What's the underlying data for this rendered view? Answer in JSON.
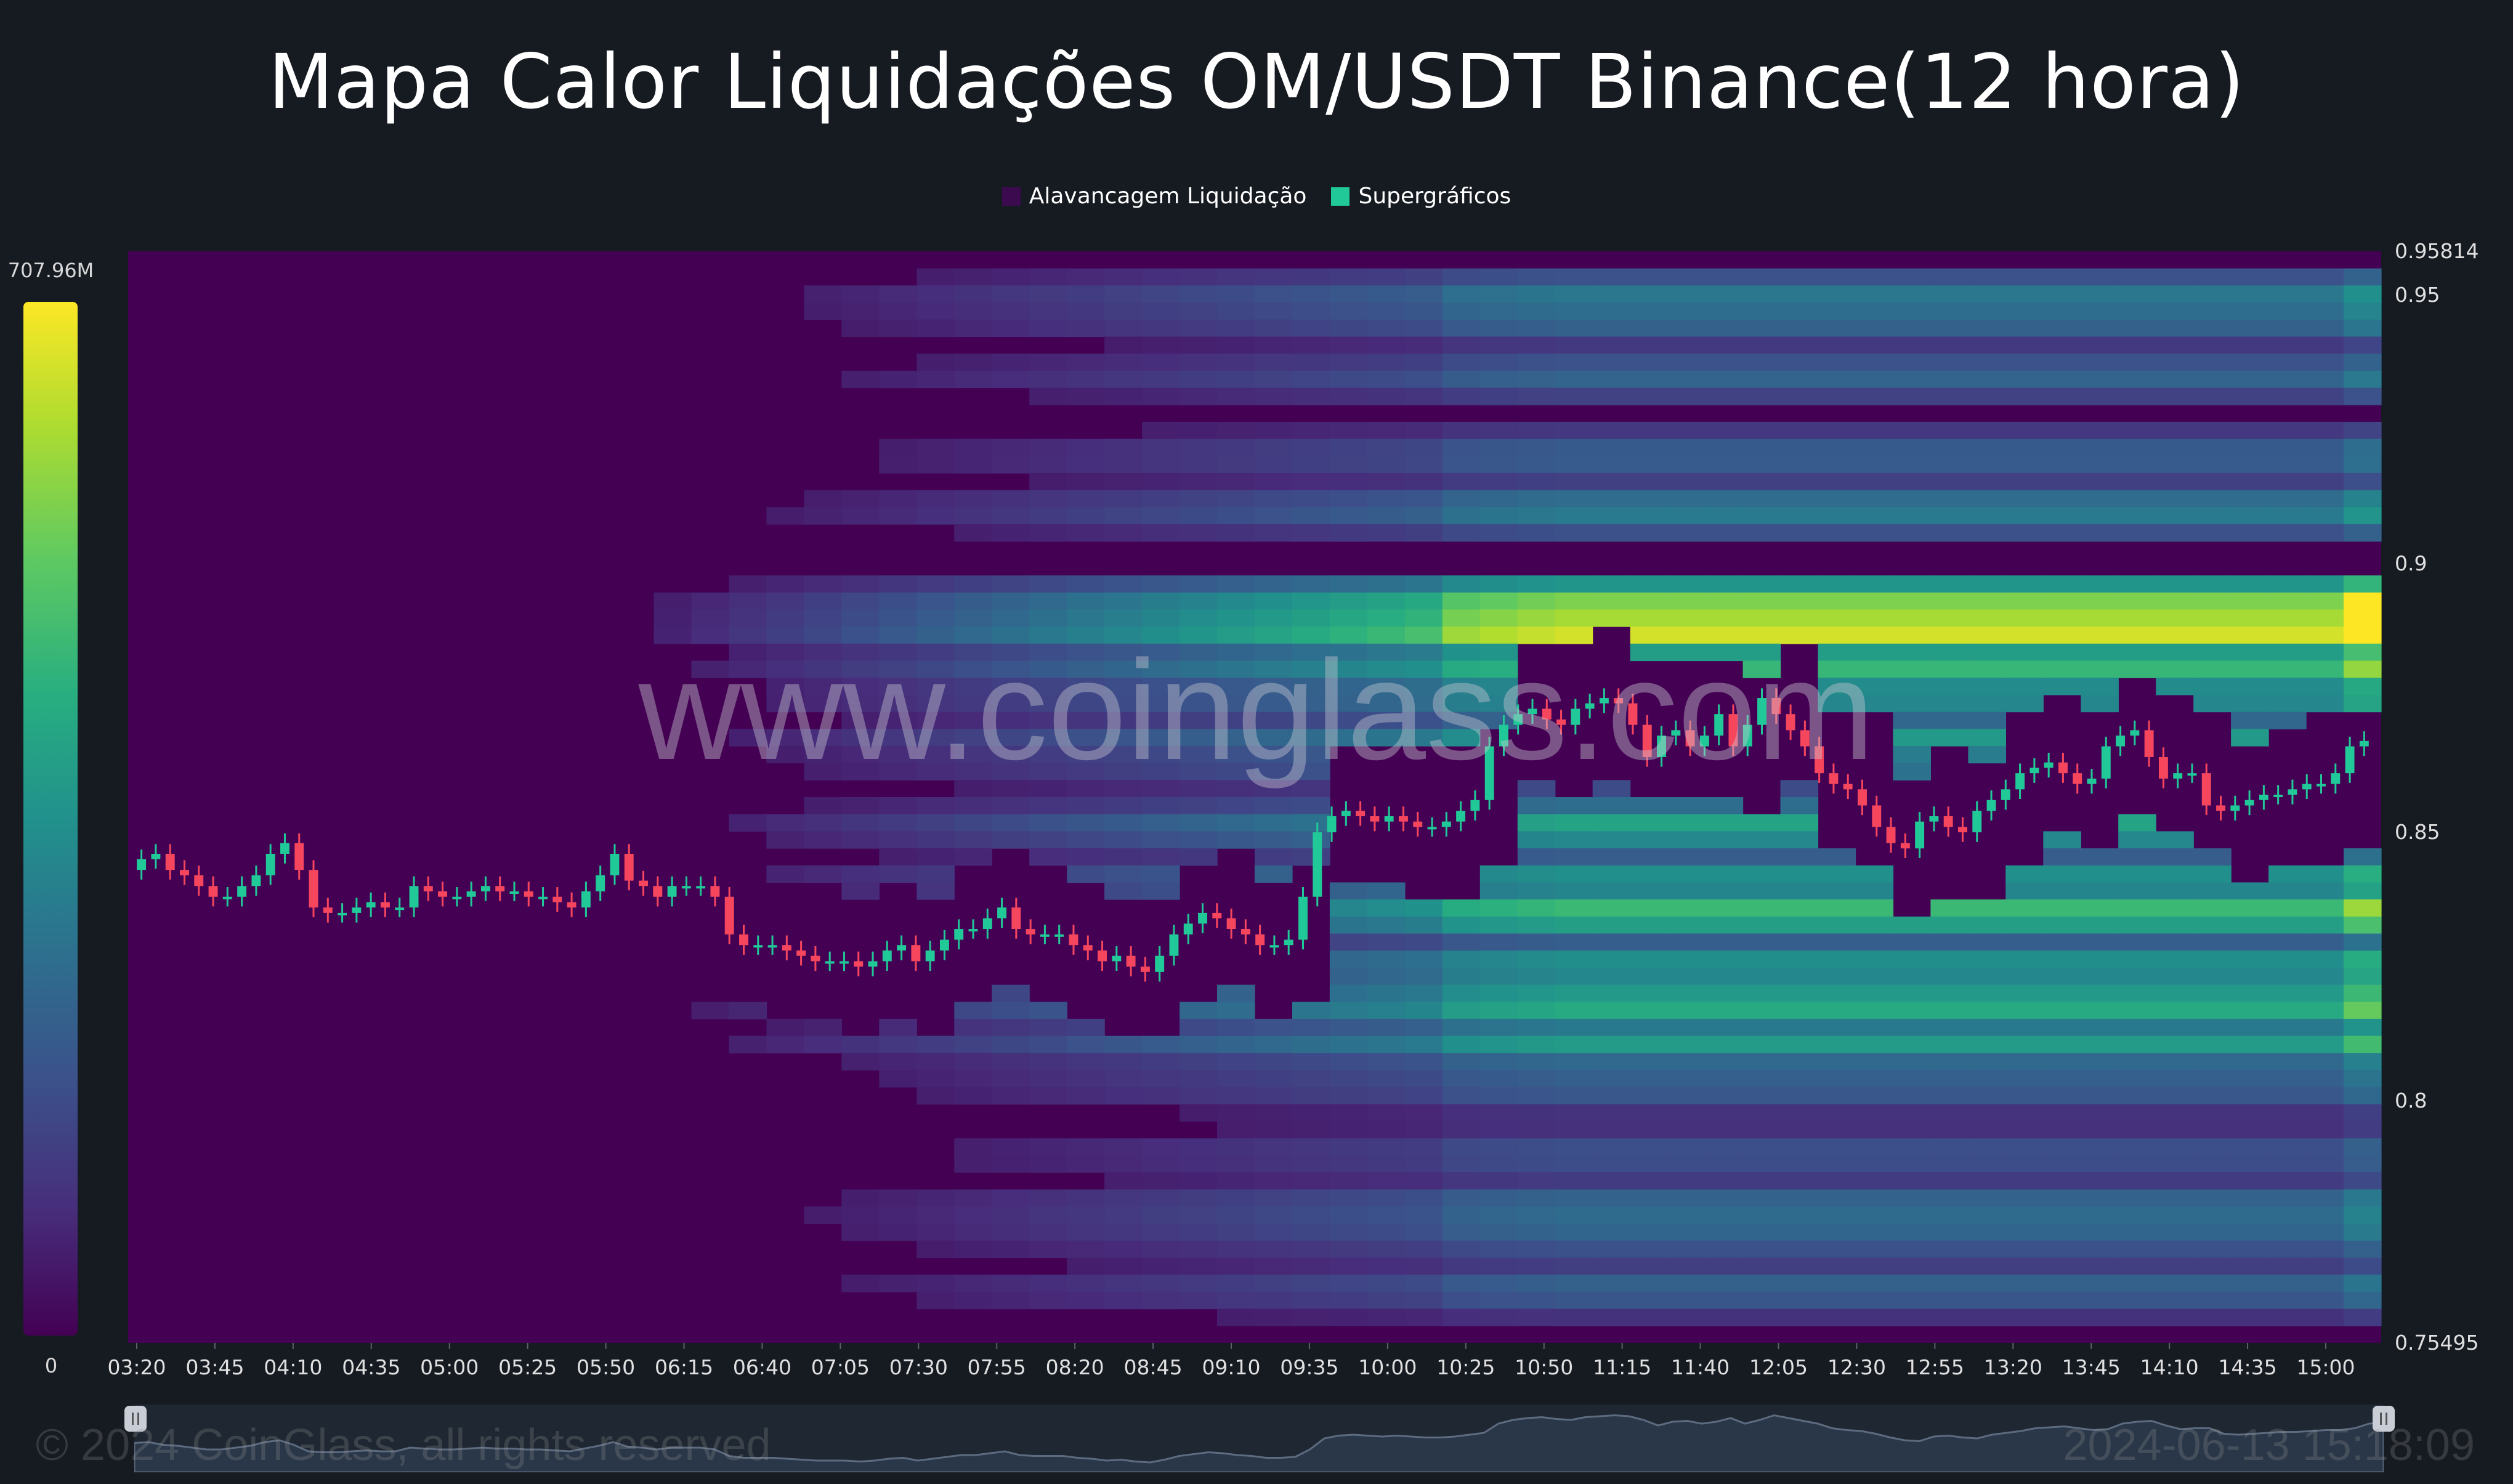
{
  "title": "Mapa Calor Liquidações OM/USDT Binance(12 hora)",
  "legend": [
    {
      "label": "Alavancagem Liquidação",
      "color": "#3b0a4f"
    },
    {
      "label": "Supergráficos",
      "color": "#20c997"
    }
  ],
  "color_scale": {
    "max_label": "707.96M",
    "min_label": "0"
  },
  "watermark": "www.coinglass.com",
  "footer": {
    "copyright": "© 2024 CoinGlass, all rights reserved",
    "timestamp": "2024-06-13 15:18:09"
  },
  "colors": {
    "background": "#161b22",
    "heat_low": "#440154",
    "heat_high": "#fde725",
    "candle_up": "#20c997",
    "candle_down": "#f6465d"
  },
  "chart_data": {
    "type": "heatmap",
    "title": "Mapa Calor Liquidações OM/USDT Binance(12 hora)",
    "x_ticks": [
      "03:20",
      "03:45",
      "04:10",
      "04:35",
      "05:00",
      "05:25",
      "05:50",
      "06:15",
      "06:40",
      "07:05",
      "07:30",
      "07:55",
      "08:20",
      "08:45",
      "09:10",
      "09:35",
      "10:00",
      "10:25",
      "10:50",
      "11:15",
      "11:40",
      "12:05",
      "12:30",
      "12:55",
      "13:20",
      "13:45",
      "14:10",
      "14:35",
      "15:00"
    ],
    "y_ticks": [
      "0.95814",
      "0.95",
      "0.9",
      "0.85",
      "0.8",
      "0.75495"
    ],
    "ylim": [
      0.75495,
      0.95814
    ],
    "color_range": [
      0,
      707.96
    ],
    "color_unit": "M",
    "liquidation_bands": [
      {
        "price": 0.888,
        "intensity": 0.95
      },
      {
        "price": 0.893,
        "intensity": 0.7
      },
      {
        "price": 0.88,
        "intensity": 0.6
      },
      {
        "price": 0.874,
        "intensity": 0.4
      },
      {
        "price": 0.867,
        "intensity": 0.5
      },
      {
        "price": 0.862,
        "intensity": 0.35
      },
      {
        "price": 0.851,
        "intensity": 0.55
      },
      {
        "price": 0.841,
        "intensity": 0.5
      },
      {
        "price": 0.835,
        "intensity": 0.65
      },
      {
        "price": 0.825,
        "intensity": 0.5
      },
      {
        "price": 0.818,
        "intensity": 0.6
      },
      {
        "price": 0.811,
        "intensity": 0.5
      },
      {
        "price": 0.803,
        "intensity": 0.3
      },
      {
        "price": 0.79,
        "intensity": 0.25
      },
      {
        "price": 0.78,
        "intensity": 0.35
      },
      {
        "price": 0.775,
        "intensity": 0.3
      },
      {
        "price": 0.765,
        "intensity": 0.3
      },
      {
        "price": 0.935,
        "intensity": 0.3
      },
      {
        "price": 0.946,
        "intensity": 0.35
      },
      {
        "price": 0.95,
        "intensity": 0.35
      },
      {
        "price": 0.92,
        "intensity": 0.3
      },
      {
        "price": 0.91,
        "intensity": 0.4
      }
    ],
    "candles_close": [
      0.845,
      0.846,
      0.843,
      0.842,
      0.84,
      0.838,
      0.838,
      0.84,
      0.842,
      0.846,
      0.848,
      0.843,
      0.836,
      0.835,
      0.835,
      0.836,
      0.837,
      0.836,
      0.836,
      0.84,
      0.839,
      0.838,
      0.838,
      0.839,
      0.84,
      0.839,
      0.839,
      0.838,
      0.838,
      0.837,
      0.836,
      0.839,
      0.842,
      0.846,
      0.841,
      0.84,
      0.838,
      0.84,
      0.84,
      0.84,
      0.838,
      0.831,
      0.829,
      0.829,
      0.829,
      0.828,
      0.827,
      0.826,
      0.826,
      0.826,
      0.825,
      0.826,
      0.828,
      0.829,
      0.826,
      0.828,
      0.83,
      0.832,
      0.832,
      0.834,
      0.836,
      0.832,
      0.831,
      0.831,
      0.831,
      0.829,
      0.828,
      0.826,
      0.827,
      0.825,
      0.824,
      0.827,
      0.831,
      0.833,
      0.835,
      0.834,
      0.832,
      0.831,
      0.829,
      0.829,
      0.83,
      0.838,
      0.85,
      0.853,
      0.854,
      0.853,
      0.852,
      0.853,
      0.852,
      0.851,
      0.851,
      0.852,
      0.854,
      0.856,
      0.866,
      0.87,
      0.872,
      0.873,
      0.871,
      0.87,
      0.873,
      0.874,
      0.875,
      0.874,
      0.87,
      0.864,
      0.868,
      0.869,
      0.866,
      0.868,
      0.872,
      0.866,
      0.87,
      0.875,
      0.872,
      0.869,
      0.866,
      0.861,
      0.859,
      0.858,
      0.855,
      0.851,
      0.848,
      0.847,
      0.852,
      0.853,
      0.851,
      0.85,
      0.854,
      0.856,
      0.858,
      0.861,
      0.862,
      0.863,
      0.861,
      0.859,
      0.86,
      0.866,
      0.868,
      0.869,
      0.864,
      0.86,
      0.861,
      0.861,
      0.855,
      0.854,
      0.855,
      0.856,
      0.857,
      0.857,
      0.858,
      0.859,
      0.859,
      0.861,
      0.866,
      0.867
    ]
  }
}
